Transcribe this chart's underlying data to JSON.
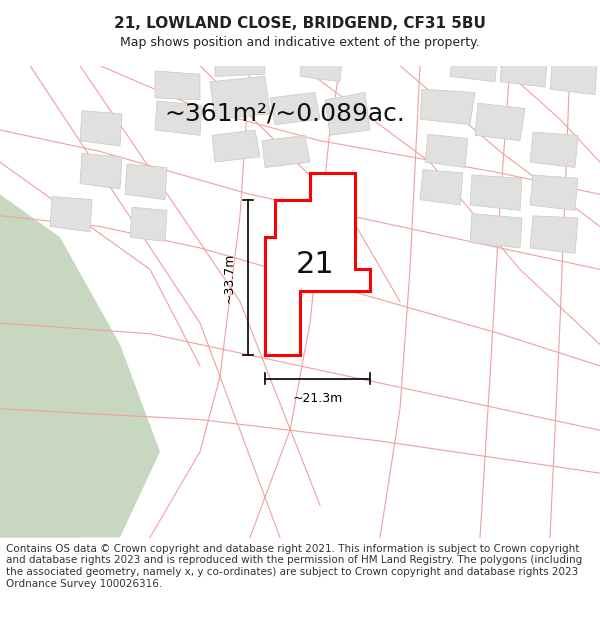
{
  "title_line1": "21, LOWLAND CLOSE, BRIDGEND, CF31 5BU",
  "title_line2": "Map shows position and indicative extent of the property.",
  "area_text": "~361m²/~0.089ac.",
  "dim_height": "~33.7m",
  "dim_width": "~21.3m",
  "label_21": "21",
  "footer_text": "Contains OS data © Crown copyright and database right 2021. This information is subject to Crown copyright and database rights 2023 and is reproduced with the permission of HM Land Registry. The polygons (including the associated geometry, namely x, y co-ordinates) are subject to Crown copyright and database rights 2023 Ordnance Survey 100026316.",
  "bg_color": "#ffffff",
  "map_bg": "#f5f5f0",
  "green_area_color": "#c8d8c0",
  "building_fill": "#e0e0de",
  "road_line_color": "#f0a0a0",
  "highlight_color": "#ff0000",
  "highlight_fill": "#ffffff",
  "dim_line_color": "#000000",
  "title_fontsize": 11,
  "subtitle_fontsize": 9,
  "area_fontsize": 18,
  "label_fontsize": 22,
  "footer_fontsize": 7.5
}
